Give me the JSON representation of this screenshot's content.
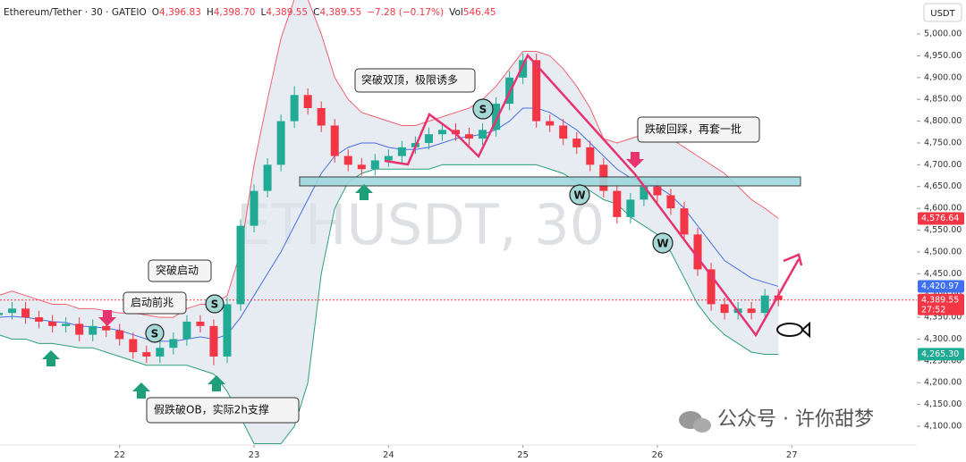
{
  "header": {
    "symbol": "Ethereum/Tether · 30 · GATEIO",
    "fields": [
      {
        "key": "O",
        "value": "4,396.83"
      },
      {
        "key": "H",
        "value": "4,398.70"
      },
      {
        "key": "L",
        "value": "4,389.55"
      },
      {
        "key": "C",
        "value": "4,389.55"
      }
    ],
    "change": "−7.28 (−0.17%)",
    "vol_key": "Vol",
    "vol": "546.45",
    "currency": "USDT"
  },
  "chart_data": {
    "type": "candlestick",
    "up_color": "#22ab94",
    "down_color": "#f23645",
    "x": [
      21.1,
      21.2,
      21.3,
      21.4,
      21.5,
      21.6,
      21.7,
      21.8,
      21.9,
      22.0,
      22.1,
      22.2,
      22.3,
      22.4,
      22.5,
      22.6,
      22.7,
      22.8,
      22.9,
      23.0,
      23.1,
      23.2,
      23.3,
      23.4,
      23.5,
      23.6,
      23.7,
      23.8,
      23.9,
      24.0,
      24.1,
      24.2,
      24.3,
      24.4,
      24.5,
      24.6,
      24.7,
      24.8,
      24.9,
      25.0,
      25.1,
      25.2,
      25.3,
      25.4,
      25.5,
      25.6,
      25.7,
      25.8,
      25.9,
      26.0,
      26.1,
      26.2,
      26.3,
      26.4,
      26.5,
      26.6,
      26.7,
      26.8,
      26.9
    ],
    "open": [
      4355,
      4360,
      4370,
      4350,
      4340,
      4330,
      4335,
      4310,
      4330,
      4320,
      4300,
      4270,
      4260,
      4280,
      4300,
      4340,
      4330,
      4260,
      4380,
      4560,
      4640,
      4700,
      4800,
      4860,
      4830,
      4790,
      4720,
      4700,
      4690,
      4710,
      4720,
      4740,
      4750,
      4770,
      4780,
      4770,
      4760,
      4780,
      4840,
      4900,
      4940,
      4800,
      4790,
      4760,
      4740,
      4700,
      4640,
      4580,
      4620,
      4650,
      4630,
      4600,
      4540,
      4460,
      4380,
      4360,
      4370,
      4360,
      4400
    ],
    "high": [
      4375,
      4385,
      4385,
      4365,
      4355,
      4350,
      4350,
      4345,
      4345,
      4335,
      4315,
      4285,
      4295,
      4315,
      4355,
      4355,
      4345,
      4395,
      4575,
      4655,
      4715,
      4815,
      4880,
      4875,
      4845,
      4805,
      4735,
      4715,
      4725,
      4735,
      4755,
      4765,
      4785,
      4795,
      4795,
      4785,
      4795,
      4855,
      4915,
      4955,
      4955,
      4815,
      4805,
      4775,
      4755,
      4715,
      4655,
      4635,
      4665,
      4665,
      4645,
      4615,
      4555,
      4475,
      4395,
      4385,
      4385,
      4415,
      4415
    ],
    "low": [
      4340,
      4345,
      4335,
      4325,
      4315,
      4315,
      4295,
      4295,
      4305,
      4285,
      4255,
      4245,
      4245,
      4265,
      4285,
      4315,
      4240,
      4245,
      4365,
      4545,
      4625,
      4685,
      4785,
      4815,
      4775,
      4705,
      4685,
      4675,
      4675,
      4695,
      4705,
      4725,
      4735,
      4755,
      4755,
      4745,
      4745,
      4765,
      4825,
      4885,
      4785,
      4775,
      4745,
      4725,
      4685,
      4625,
      4565,
      4565,
      4605,
      4615,
      4585,
      4525,
      4445,
      4365,
      4345,
      4345,
      4345,
      4345,
      4375
    ],
    "close": [
      4360,
      4370,
      4350,
      4340,
      4330,
      4335,
      4310,
      4330,
      4320,
      4300,
      4270,
      4260,
      4280,
      4300,
      4340,
      4330,
      4260,
      4380,
      4560,
      4640,
      4700,
      4800,
      4860,
      4830,
      4790,
      4720,
      4700,
      4690,
      4710,
      4720,
      4740,
      4750,
      4770,
      4780,
      4770,
      4760,
      4780,
      4840,
      4900,
      4940,
      4800,
      4790,
      4760,
      4740,
      4700,
      4640,
      4580,
      4620,
      4650,
      4630,
      4600,
      4540,
      4460,
      4380,
      4360,
      4370,
      4360,
      4400,
      4390
    ],
    "bands": [
      {
        "color": "#f0616f",
        "values": [
          4400,
          4410,
          4400,
          4390,
          4380,
          4380,
          4370,
          4370,
          4365,
          4360,
          4360,
          4355,
          4350,
          4350,
          4370,
          4380,
          4380,
          4400,
          4500,
          4700,
          4850,
          4990,
          5080,
          5080,
          5000,
          4900,
          4850,
          4820,
          4810,
          4800,
          4790,
          4790,
          4800,
          4810,
          4820,
          4830,
          4850,
          4880,
          4920,
          4960,
          4960,
          4950,
          4920,
          4880,
          4830,
          4760,
          4750,
          4760,
          4770,
          4770,
          4760,
          4740,
          4720,
          4700,
          4680,
          4650,
          4620,
          4600,
          4577
        ]
      },
      {
        "color": "#4a6fe3",
        "values": [
          4350,
          4352,
          4350,
          4345,
          4340,
          4338,
          4330,
          4328,
          4325,
          4320,
          4310,
          4300,
          4295,
          4295,
          4300,
          4305,
          4300,
          4310,
          4350,
          4400,
          4450,
          4500,
          4560,
          4620,
          4680,
          4720,
          4740,
          4750,
          4750,
          4740,
          4735,
          4735,
          4740,
          4750,
          4760,
          4765,
          4770,
          4780,
          4800,
          4830,
          4830,
          4820,
          4800,
          4780,
          4750,
          4720,
          4690,
          4670,
          4660,
          4650,
          4630,
          4600,
          4560,
          4520,
          4480,
          4460,
          4440,
          4430,
          4421
        ]
      },
      {
        "color": "#2e9e7c",
        "values": [
          4310,
          4300,
          4300,
          4290,
          4290,
          4285,
          4280,
          4280,
          4270,
          4260,
          4250,
          4240,
          4240,
          4240,
          4240,
          4230,
          4220,
          4180,
          4120,
          4060,
          4060,
          4060,
          4100,
          4200,
          4450,
          4600,
          4660,
          4680,
          4690,
          4690,
          4690,
          4690,
          4690,
          4700,
          4700,
          4700,
          4700,
          4700,
          4700,
          4700,
          4700,
          4690,
          4680,
          4660,
          4640,
          4620,
          4610,
          4580,
          4560,
          4540,
          4500,
          4440,
          4380,
          4340,
          4310,
          4290,
          4270,
          4265,
          4265
        ]
      }
    ],
    "xlim": [
      21.11,
      27.93
    ],
    "xticks": [
      22,
      23,
      24,
      25,
      26,
      27
    ],
    "ylim": [
      4059,
      5078
    ],
    "yticks": [
      {
        "value": 4100,
        "label": "4,100.00"
      },
      {
        "value": 4150,
        "label": "4,150.00"
      },
      {
        "value": 4200,
        "label": "4,200.00"
      },
      {
        "value": 4250,
        "label": "4,250.00"
      },
      {
        "value": 4300,
        "label": "4,300.00"
      },
      {
        "value": 4350,
        "label": "4,350.00"
      },
      {
        "value": 4400,
        "label": "4,400.00"
      },
      {
        "value": 4450,
        "label": "4,450.00"
      },
      {
        "value": 4500,
        "label": "4,500.00"
      },
      {
        "value": 4550,
        "label": "4,550.00"
      },
      {
        "value": 4600,
        "label": "4,600.00"
      },
      {
        "value": 4650,
        "label": "4,650.00"
      },
      {
        "value": 4700,
        "label": "4,700.00"
      },
      {
        "value": 4750,
        "label": "4,750.00"
      },
      {
        "value": 4800,
        "label": "4,800.00"
      },
      {
        "value": 4850,
        "label": "4,850.00"
      },
      {
        "value": 4900,
        "label": "4,900.00"
      },
      {
        "value": 4950,
        "label": "4,950.00"
      },
      {
        "value": 5000,
        "label": "5,000.00"
      }
    ],
    "price_tags": [
      {
        "value": 4576.64,
        "label": "4,576.64",
        "color": "#f23645"
      },
      {
        "value": 4420.97,
        "label": "4,420.97",
        "color": "#3d6ff0"
      },
      {
        "value": 4389.55,
        "label": "4,389.55",
        "color": "#f23645"
      },
      {
        "value": 4265.3,
        "label": "4,265.30",
        "color": "#22ab94"
      }
    ],
    "countdown": "27:52",
    "watermark": "ETHUSDT, 30"
  },
  "annotations": {
    "callouts": [
      "突破双顶，极限诱多",
      "跌破回踩，再套一批",
      "突破启动",
      "启动前兆",
      "假跌破OB，实际2h支撑"
    ],
    "markers": [
      "S",
      "S",
      "S",
      "W",
      "W"
    ]
  },
  "footer": {
    "wechat": "公众号 · 许你甜梦"
  }
}
